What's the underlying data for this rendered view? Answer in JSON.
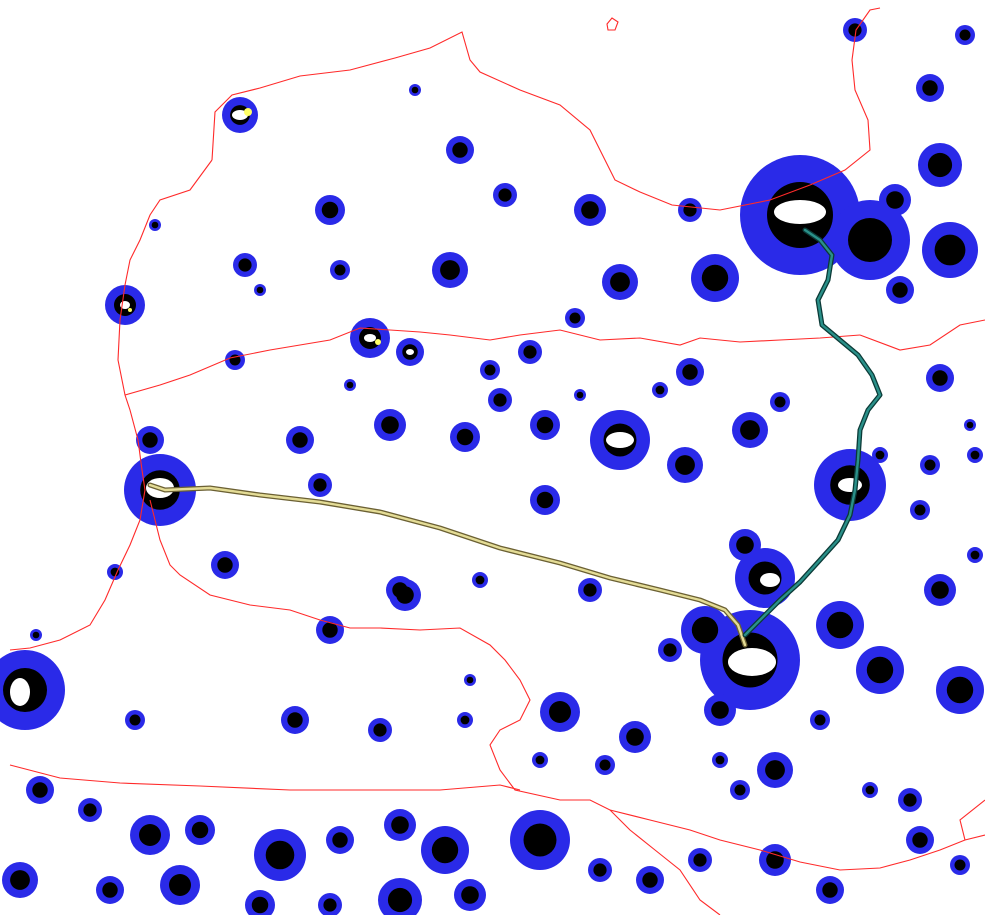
{
  "map": {
    "kind": "light-pollution-map",
    "legend_shown": false,
    "colors": {
      "background": "#ffffff",
      "glow_halo": "#2a2ae8",
      "glow_core": "#000000",
      "urban_center": "#ffffff",
      "urban_highlight": "#ffff66",
      "border": "#ff2a2a",
      "route_west": "#d9cf7a",
      "route_north": "#1f6f6a"
    },
    "borders_shown": true,
    "routes_shown": 2
  }
}
